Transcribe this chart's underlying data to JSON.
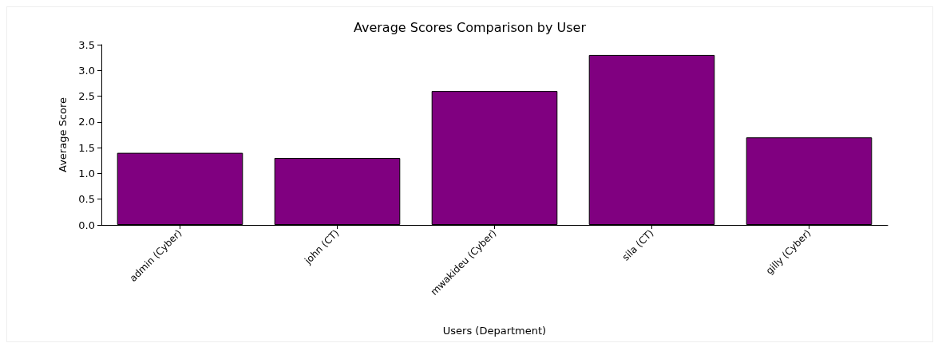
{
  "chart_data": {
    "type": "bar",
    "title": "Average Scores Comparison by User",
    "xlabel": "Users (Department)",
    "ylabel": "Average Score",
    "categories": [
      "admin (Cyber)",
      "john (CT)",
      "mwakideu (Cyber)",
      "sila (CT)",
      "gilly (Cyber)"
    ],
    "values": [
      1.4,
      1.3,
      2.6,
      3.3,
      1.7
    ],
    "color": "#800080",
    "ylim": [
      0,
      3.5
    ],
    "yticks": [
      {
        "value": 0,
        "label": "0.0"
      },
      0.5,
      {
        "value": 1,
        "label": "1.0"
      },
      1.5,
      {
        "value": 2,
        "label": "2.0"
      },
      2.5,
      {
        "value": 3,
        "label": "3.0"
      },
      3.5
    ],
    "grid": false
  }
}
